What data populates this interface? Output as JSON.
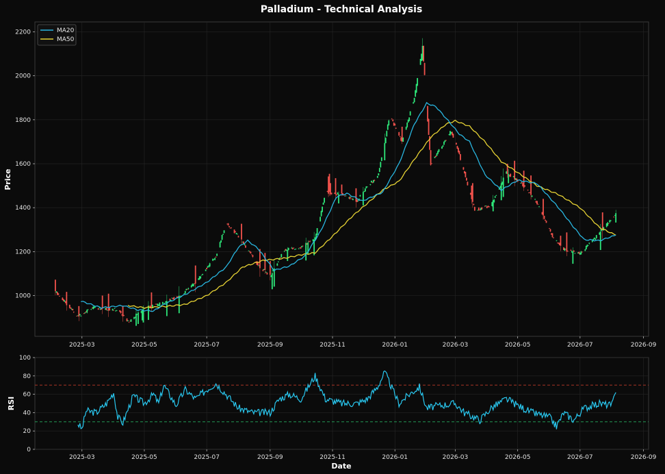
{
  "chart_data": [
    {
      "type": "candlestick",
      "title": "Palladium - Technical Analysis",
      "ylabel": "Price",
      "xlabel": "",
      "ylim": [
        815,
        2245
      ],
      "xlim": [
        "2025-01-14",
        "2026-09-06"
      ],
      "yticks": [
        1000,
        1200,
        1400,
        1600,
        1800,
        2000,
        2200
      ],
      "xticks": [
        "2025-03",
        "2025-05",
        "2025-07",
        "2025-09",
        "2025-11",
        "2026-01",
        "2026-03",
        "2026-05",
        "2026-07",
        "2026-09"
      ],
      "grid": true,
      "legend": {
        "position": "top-left",
        "entries": [
          "MA20",
          "MA50"
        ]
      },
      "colors": {
        "up": "#2ee87a",
        "down": "#f2524c",
        "ma20": "#29b6e0",
        "ma50": "#e6d234",
        "background": "#0b0b0b"
      },
      "price_path": [
        [
          "2025-02-01",
          1030
        ],
        [
          "2025-02-25",
          905
        ],
        [
          "2025-03-10",
          945
        ],
        [
          "2025-04-05",
          935
        ],
        [
          "2025-04-15",
          880
        ],
        [
          "2025-05-01",
          945
        ],
        [
          "2025-05-15",
          960
        ],
        [
          "2025-06-05",
          1000
        ],
        [
          "2025-06-20",
          1060
        ],
        [
          "2025-07-10",
          1180
        ],
        [
          "2025-07-20",
          1330
        ],
        [
          "2025-08-01",
          1270
        ],
        [
          "2025-08-20",
          1140
        ],
        [
          "2025-09-01",
          1090
        ],
        [
          "2025-09-15",
          1210
        ],
        [
          "2025-10-01",
          1220
        ],
        [
          "2025-10-15",
          1260
        ],
        [
          "2025-10-25",
          1470
        ],
        [
          "2025-11-10",
          1460
        ],
        [
          "2025-11-25",
          1430
        ],
        [
          "2025-12-05",
          1500
        ],
        [
          "2025-12-15",
          1540
        ],
        [
          "2025-12-22",
          1700
        ],
        [
          "2025-12-27",
          1820
        ],
        [
          "2026-01-08",
          1700
        ],
        [
          "2026-01-20",
          1900
        ],
        [
          "2026-01-28",
          2130
        ],
        [
          "2026-02-05",
          1600
        ],
        [
          "2026-02-25",
          1750
        ],
        [
          "2026-03-05",
          1640
        ],
        [
          "2026-03-20",
          1390
        ],
        [
          "2026-04-05",
          1410
        ],
        [
          "2026-04-20",
          1560
        ],
        [
          "2026-05-05",
          1510
        ],
        [
          "2026-05-20",
          1420
        ],
        [
          "2026-06-05",
          1260
        ],
        [
          "2026-06-15",
          1210
        ],
        [
          "2026-07-01",
          1190
        ],
        [
          "2026-07-15",
          1260
        ],
        [
          "2026-08-05",
          1370
        ]
      ],
      "ma20": [
        [
          "2025-02-28",
          975
        ],
        [
          "2025-03-20",
          945
        ],
        [
          "2025-04-10",
          955
        ],
        [
          "2025-04-25",
          935
        ],
        [
          "2025-05-10",
          930
        ],
        [
          "2025-05-20",
          960
        ],
        [
          "2025-06-10",
          1005
        ],
        [
          "2025-07-01",
          1060
        ],
        [
          "2025-07-20",
          1130
        ],
        [
          "2025-08-01",
          1220
        ],
        [
          "2025-08-10",
          1250
        ],
        [
          "2025-08-20",
          1215
        ],
        [
          "2025-09-05",
          1115
        ],
        [
          "2025-09-20",
          1135
        ],
        [
          "2025-10-05",
          1180
        ],
        [
          "2025-10-20",
          1290
        ],
        [
          "2025-11-05",
          1450
        ],
        [
          "2025-11-15",
          1465
        ],
        [
          "2025-11-30",
          1430
        ],
        [
          "2025-12-20",
          1470
        ],
        [
          "2026-01-05",
          1600
        ],
        [
          "2026-01-20",
          1780
        ],
        [
          "2026-02-01",
          1875
        ],
        [
          "2026-02-10",
          1860
        ],
        [
          "2026-02-25",
          1780
        ],
        [
          "2026-03-05",
          1735
        ],
        [
          "2026-03-15",
          1700
        ],
        [
          "2026-03-30",
          1550
        ],
        [
          "2026-04-15",
          1480
        ],
        [
          "2026-05-01",
          1525
        ],
        [
          "2026-05-20",
          1510
        ],
        [
          "2026-06-10",
          1400
        ],
        [
          "2026-06-25",
          1310
        ],
        [
          "2026-07-05",
          1255
        ],
        [
          "2026-07-20",
          1250
        ],
        [
          "2026-08-05",
          1275
        ]
      ],
      "ma50": [
        [
          "2025-04-15",
          955
        ],
        [
          "2025-05-01",
          945
        ],
        [
          "2025-05-20",
          950
        ],
        [
          "2025-06-10",
          960
        ],
        [
          "2025-07-01",
          1000
        ],
        [
          "2025-07-20",
          1060
        ],
        [
          "2025-08-05",
          1130
        ],
        [
          "2025-08-25",
          1160
        ],
        [
          "2025-09-15",
          1170
        ],
        [
          "2025-09-30",
          1185
        ],
        [
          "2025-10-15",
          1195
        ],
        [
          "2025-11-01",
          1270
        ],
        [
          "2025-11-20",
          1360
        ],
        [
          "2025-12-05",
          1420
        ],
        [
          "2025-12-20",
          1480
        ],
        [
          "2026-01-05",
          1520
        ],
        [
          "2026-01-20",
          1620
        ],
        [
          "2026-02-05",
          1720
        ],
        [
          "2026-02-20",
          1780
        ],
        [
          "2026-03-01",
          1795
        ],
        [
          "2026-03-15",
          1770
        ],
        [
          "2026-03-30",
          1700
        ],
        [
          "2026-04-15",
          1610
        ],
        [
          "2026-05-01",
          1560
        ],
        [
          "2026-05-20",
          1500
        ],
        [
          "2026-06-10",
          1460
        ],
        [
          "2026-07-01",
          1400
        ],
        [
          "2026-07-20",
          1310
        ],
        [
          "2026-08-05",
          1275
        ]
      ]
    },
    {
      "type": "line",
      "ylabel": "RSI",
      "xlabel": "Date",
      "ylim": [
        0,
        100
      ],
      "yticks": [
        0,
        20,
        40,
        60,
        80,
        100
      ],
      "xticks": [
        "2025-03",
        "2025-05",
        "2025-07",
        "2025-09",
        "2025-11",
        "2026-01",
        "2026-03",
        "2026-05",
        "2026-07",
        "2026-09"
      ],
      "grid": true,
      "reference_lines": [
        {
          "y": 70,
          "color": "#c0392b",
          "style": "dashed"
        },
        {
          "y": 30,
          "color": "#27ae60",
          "style": "dashed"
        }
      ],
      "colors": {
        "rsi": "#29c8f0"
      },
      "rsi": [
        [
          "2025-02-25",
          28
        ],
        [
          "2025-03-01",
          22
        ],
        [
          "2025-03-05",
          42
        ],
        [
          "2025-03-15",
          40
        ],
        [
          "2025-03-25",
          50
        ],
        [
          "2025-04-01",
          62
        ],
        [
          "2025-04-05",
          35
        ],
        [
          "2025-04-10",
          29
        ],
        [
          "2025-04-20",
          58
        ],
        [
          "2025-05-01",
          50
        ],
        [
          "2025-05-10",
          60
        ],
        [
          "2025-05-15",
          50
        ],
        [
          "2025-05-20",
          70
        ],
        [
          "2025-06-01",
          48
        ],
        [
          "2025-06-10",
          65
        ],
        [
          "2025-06-20",
          55
        ],
        [
          "2025-07-01",
          65
        ],
        [
          "2025-07-10",
          72
        ],
        [
          "2025-07-20",
          60
        ],
        [
          "2025-08-01",
          45
        ],
        [
          "2025-08-15",
          40
        ],
        [
          "2025-09-01",
          40
        ],
        [
          "2025-09-10",
          55
        ],
        [
          "2025-09-20",
          60
        ],
        [
          "2025-10-01",
          55
        ],
        [
          "2025-10-15",
          80
        ],
        [
          "2025-10-25",
          55
        ],
        [
          "2025-11-10",
          50
        ],
        [
          "2025-11-25",
          50
        ],
        [
          "2025-12-05",
          55
        ],
        [
          "2025-12-15",
          68
        ],
        [
          "2025-12-22",
          84
        ],
        [
          "2026-01-05",
          50
        ],
        [
          "2026-01-15",
          60
        ],
        [
          "2026-01-25",
          68
        ],
        [
          "2026-02-01",
          45
        ],
        [
          "2026-02-15",
          48
        ],
        [
          "2026-03-01",
          50
        ],
        [
          "2026-03-10",
          40
        ],
        [
          "2026-03-25",
          32
        ],
        [
          "2026-04-05",
          45
        ],
        [
          "2026-04-20",
          55
        ],
        [
          "2026-05-01",
          48
        ],
        [
          "2026-05-15",
          40
        ],
        [
          "2026-06-01",
          35
        ],
        [
          "2026-06-08",
          25
        ],
        [
          "2026-06-15",
          40
        ],
        [
          "2026-06-25",
          32
        ],
        [
          "2026-07-05",
          45
        ],
        [
          "2026-07-20",
          50
        ],
        [
          "2026-08-01",
          48
        ],
        [
          "2026-08-05",
          62
        ]
      ]
    }
  ]
}
